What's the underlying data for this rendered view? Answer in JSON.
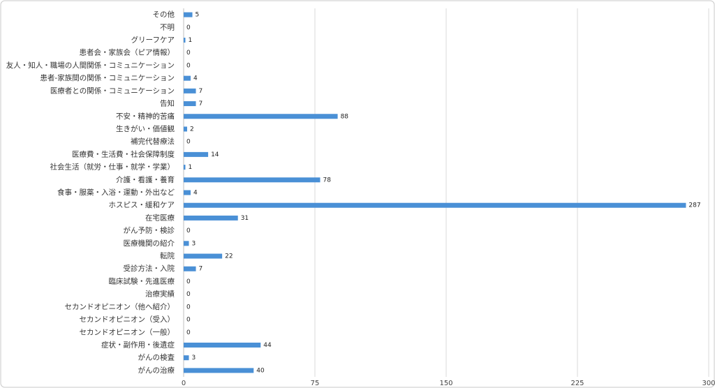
{
  "chart_data": {
    "type": "barh",
    "categories": [
      "その他",
      "不明",
      "グリーフケア",
      "患者会・家族会（ピア情報）",
      "友人・知人・職場の人間関係・コミュニケーション",
      "患者-家族間の関係・コミュニケーション",
      "医療者との関係・コミュニケーション",
      "告知",
      "不安・精神的苦痛",
      "生きがい・価値観",
      "補完代替療法",
      "医療費・生活費・社会保障制度",
      "社会生活（就労・仕事・就学・学業）",
      "介護・看護・養育",
      "食事・服薬・入浴・運動・外出など",
      "ホスピス・緩和ケア",
      "在宅医療",
      "がん予防・検診",
      "医療機関の紹介",
      "転院",
      "受診方法・入院",
      "臨床試験・先進医療",
      "治療実績",
      "セカンドオピニオン（他へ紹介）",
      "セカンドオピニオン（受入）",
      "セカンドオピニオン（一般）",
      "症状・副作用・後遺症",
      "がんの検査",
      "がんの治療"
    ],
    "values": [
      5,
      0,
      1,
      0,
      0,
      4,
      7,
      7,
      88,
      2,
      0,
      14,
      1,
      78,
      4,
      287,
      31,
      0,
      3,
      22,
      7,
      0,
      0,
      0,
      0,
      0,
      44,
      3,
      40
    ],
    "color": "#4a90d6",
    "xlim": [
      0,
      300
    ],
    "xticks": [
      0,
      75,
      150,
      225,
      300
    ],
    "grid": true
  }
}
